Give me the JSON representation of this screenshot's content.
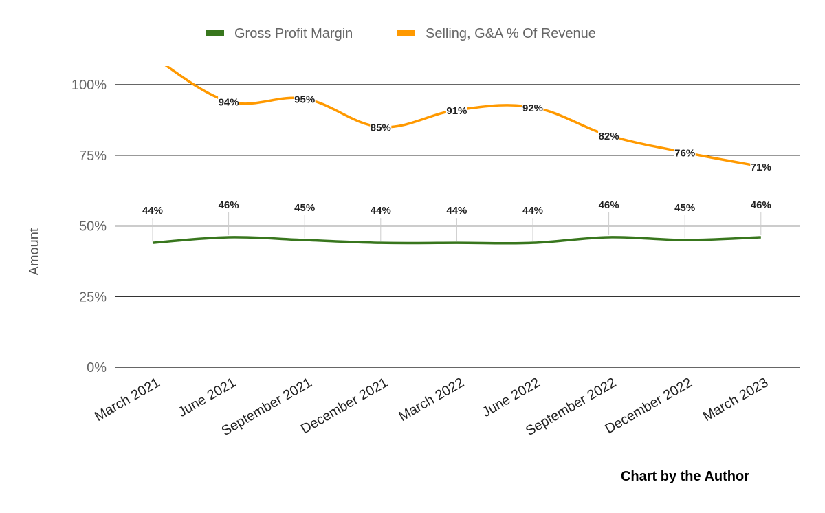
{
  "chart_data": {
    "type": "line",
    "title": "",
    "xlabel": "",
    "ylabel": "Amount",
    "ylim": [
      0,
      106
    ],
    "yticks": [
      0,
      25,
      50,
      75,
      100
    ],
    "ytick_labels": [
      "0%",
      "25%",
      "50%",
      "75%",
      "100%"
    ],
    "grid": true,
    "legend_position": "top",
    "categories": [
      "March 2021",
      "June 2021",
      "September 2021",
      "December 2021",
      "March 2022",
      "June 2022",
      "September 2022",
      "December 2022",
      "March 2023"
    ],
    "series": [
      {
        "name": "Gross Profit Margin",
        "color": "#38761d",
        "values": [
          44,
          46,
          45,
          44,
          44,
          44,
          46,
          45,
          46
        ],
        "labels": [
          "44%",
          "46%",
          "45%",
          "44%",
          "44%",
          "44%",
          "46%",
          "45%",
          "46%"
        ]
      },
      {
        "name": "Selling, G&A % Of Revenue",
        "color": "#ff9900",
        "values": [
          110,
          94,
          95,
          85,
          91,
          92,
          82,
          76,
          71
        ],
        "labels": [
          "",
          "94%",
          "95%",
          "85%",
          "91%",
          "92%",
          "82%",
          "76%",
          "71%"
        ]
      }
    ],
    "annotation": "Chart by the Author"
  }
}
